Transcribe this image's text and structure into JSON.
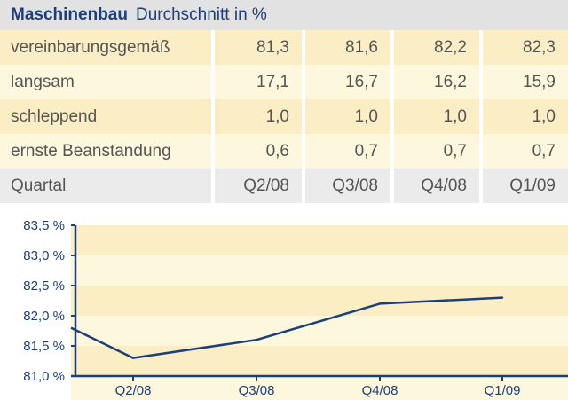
{
  "header": {
    "title": "Maschinenbau",
    "subtitle": "Durchschnitt in %"
  },
  "table": {
    "rows": [
      {
        "label": "vereinbarungsgemäß",
        "values": [
          "81,3",
          "81,6",
          "82,2",
          "82,3"
        ]
      },
      {
        "label": "langsam",
        "values": [
          "17,1",
          "16,7",
          "16,2",
          "15,9"
        ]
      },
      {
        "label": "schleppend",
        "values": [
          "1,0",
          "1,0",
          "1,0",
          "1,0"
        ]
      },
      {
        "label": "ernste Beanstandung",
        "values": [
          "0,6",
          "0,7",
          "0,7",
          "0,7"
        ]
      }
    ],
    "footer": {
      "label": "Quartal",
      "values": [
        "Q2/08",
        "Q3/08",
        "Q4/08",
        "Q1/09"
      ]
    }
  },
  "colors": {
    "accent": "#1c3f7c",
    "band_dark": "#fbeec4",
    "band_light": "#fdf7de",
    "header_bg": "#e2e2e2"
  },
  "chart_data": {
    "type": "line",
    "categories": [
      "Q2/08",
      "Q3/08",
      "Q4/08",
      "Q1/09"
    ],
    "series": [
      {
        "values": [
          81.3,
          81.6,
          82.2,
          82.3
        ]
      }
    ],
    "line_start_value": 81.8,
    "ylim": [
      81.0,
      83.5
    ],
    "yticks": [
      "81,0 %",
      "81,5 %",
      "82,0 %",
      "82,5 %",
      "83,0 %",
      "83,5 %"
    ],
    "ytick_values": [
      81.0,
      81.5,
      82.0,
      82.5,
      83.0,
      83.5
    ],
    "title": "",
    "xlabel": "",
    "ylabel": "",
    "grid": false
  }
}
